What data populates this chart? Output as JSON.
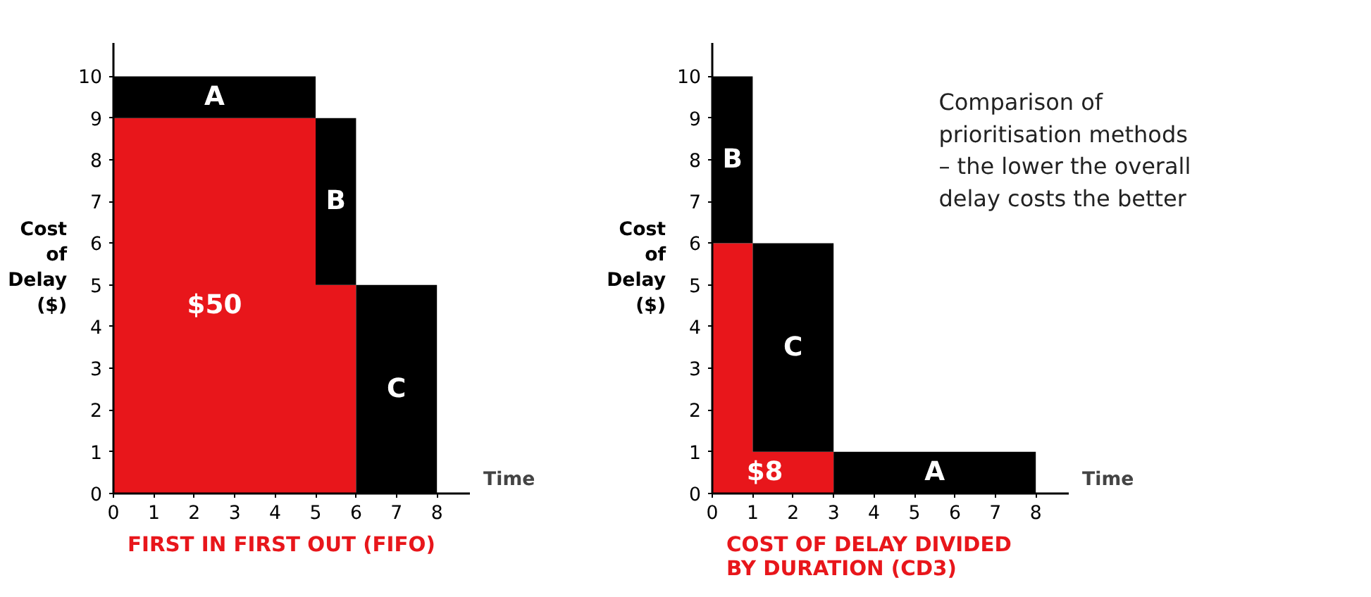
{
  "chart_data": [
    {
      "type": "area",
      "stacked": true,
      "x": [
        0,
        5,
        5,
        6,
        6,
        8
      ],
      "title": "FIRST IN FIRST OUT (FIFO)",
      "xlabel": "Time",
      "ylabel": "Cost of Delay ($)",
      "xlim": [
        0,
        8.8
      ],
      "ylim": [
        0,
        10.8
      ],
      "xticks": [
        0,
        1,
        2,
        3,
        4,
        5,
        6,
        7,
        8
      ],
      "yticks": [
        0,
        1,
        2,
        3,
        4,
        5,
        6,
        7,
        8,
        9,
        10
      ],
      "grid": false,
      "series": [
        {
          "color": "#e8161b",
          "values": [
            9,
            9,
            5,
            5,
            0,
            0
          ]
        },
        {
          "color": "#000000",
          "values": [
            1,
            1,
            4,
            4,
            5,
            5
          ]
        }
      ],
      "annotations": [
        "A",
        "B",
        "C",
        "$50"
      ]
    },
    {
      "type": "area",
      "stacked": true,
      "x": [
        0,
        1,
        1,
        3,
        3,
        8
      ],
      "title": "COST OF DELAY DIVIDED\nBY DURATION (CD3)",
      "xlabel": "Time",
      "ylabel": "Cost of Delay ($)",
      "xlim": [
        0,
        8.8
      ],
      "ylim": [
        0,
        10.8
      ],
      "xticks": [
        0,
        1,
        2,
        3,
        4,
        5,
        6,
        7,
        8
      ],
      "yticks": [
        0,
        1,
        2,
        3,
        4,
        5,
        6,
        7,
        8,
        9,
        10
      ],
      "grid": false,
      "series": [
        {
          "color": "#e8161b",
          "values": [
            6,
            6,
            1,
            1,
            0,
            0
          ]
        },
        {
          "color": "#000000",
          "values": [
            4,
            4,
            5,
            5,
            1,
            1
          ]
        }
      ],
      "annotations": [
        "B",
        "C",
        "A",
        "$8",
        "Comparison of\nprioritisation methods\n– the lower the overall\ndelay costs the better"
      ]
    }
  ]
}
